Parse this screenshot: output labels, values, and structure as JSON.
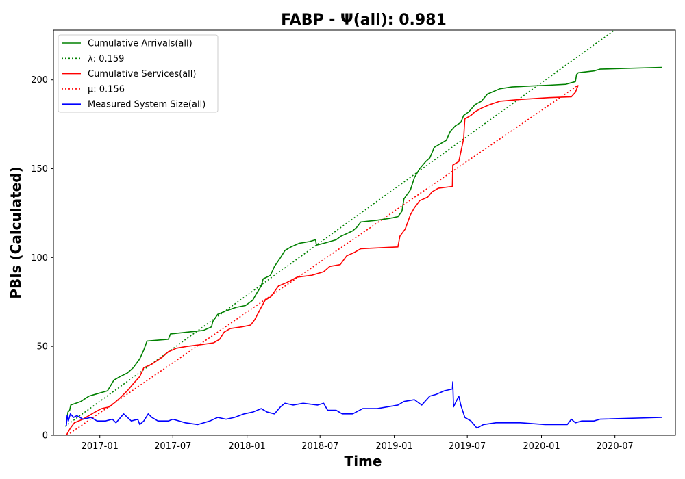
{
  "chart_data": {
    "type": "line",
    "title": "FABP -  Ψ(all): 0.981",
    "xlabel": "Time",
    "ylabel": "PBIs (Calculated)",
    "x_ticks": [
      "2017-01",
      "2017-07",
      "2018-01",
      "2018-07",
      "2019-01",
      "2019-07",
      "2020-01",
      "2020-07"
    ],
    "xlim": [
      "2016-09-08",
      "2020-11-28"
    ],
    "ylim": [
      0,
      228
    ],
    "y_ticks": [
      0,
      50,
      100,
      150,
      200
    ],
    "grid": false,
    "legend_position": "top-left",
    "series": [
      {
        "name": "Cumulative Arrivals(all)",
        "color": "#008000",
        "style": "solid",
        "points": [
          [
            "2016-10-12",
            10
          ],
          [
            "2016-10-14",
            13
          ],
          [
            "2016-10-18",
            14
          ],
          [
            "2016-10-21",
            17
          ],
          [
            "2016-11-15",
            19
          ],
          [
            "2016-12-05",
            22
          ],
          [
            "2016-12-20",
            23
          ],
          [
            "2017-01-20",
            25
          ],
          [
            "2017-01-28",
            28
          ],
          [
            "2017-02-05",
            31
          ],
          [
            "2017-02-20",
            33
          ],
          [
            "2017-03-10",
            35
          ],
          [
            "2017-03-25",
            38
          ],
          [
            "2017-04-10",
            43
          ],
          [
            "2017-04-20",
            48
          ],
          [
            "2017-04-28",
            53
          ],
          [
            "2017-06-20",
            54
          ],
          [
            "2017-06-25",
            57
          ],
          [
            "2017-08-05",
            58
          ],
          [
            "2017-09-15",
            59
          ],
          [
            "2017-10-05",
            61
          ],
          [
            "2017-10-08",
            64
          ],
          [
            "2017-10-20",
            68
          ],
          [
            "2017-11-10",
            70
          ],
          [
            "2017-12-05",
            72
          ],
          [
            "2017-12-28",
            73
          ],
          [
            "2018-01-15",
            76
          ],
          [
            "2018-01-25",
            80
          ],
          [
            "2018-02-05",
            84
          ],
          [
            "2018-02-10",
            88
          ],
          [
            "2018-02-28",
            90
          ],
          [
            "2018-03-10",
            95
          ],
          [
            "2018-03-25",
            100
          ],
          [
            "2018-04-05",
            104
          ],
          [
            "2018-04-20",
            106
          ],
          [
            "2018-05-10",
            108
          ],
          [
            "2018-06-05",
            109
          ],
          [
            "2018-06-20",
            110
          ],
          [
            "2018-06-22",
            107
          ],
          [
            "2018-07-10",
            108
          ],
          [
            "2018-08-10",
            110
          ],
          [
            "2018-08-22",
            112
          ],
          [
            "2018-09-20",
            115
          ],
          [
            "2018-09-30",
            117
          ],
          [
            "2018-10-10",
            120
          ],
          [
            "2018-11-20",
            121
          ],
          [
            "2018-12-20",
            122
          ],
          [
            "2019-01-10",
            123
          ],
          [
            "2019-01-20",
            126
          ],
          [
            "2019-01-25",
            133
          ],
          [
            "2019-02-10",
            138
          ],
          [
            "2019-02-20",
            145
          ],
          [
            "2019-03-05",
            150
          ],
          [
            "2019-03-20",
            154
          ],
          [
            "2019-03-30",
            156
          ],
          [
            "2019-04-10",
            162
          ],
          [
            "2019-04-25",
            164
          ],
          [
            "2019-05-10",
            166
          ],
          [
            "2019-05-20",
            171
          ],
          [
            "2019-06-01",
            174
          ],
          [
            "2019-06-15",
            176
          ],
          [
            "2019-06-22",
            180
          ],
          [
            "2019-07-05",
            182
          ],
          [
            "2019-07-20",
            186
          ],
          [
            "2019-08-05",
            188
          ],
          [
            "2019-08-20",
            192
          ],
          [
            "2019-09-20",
            195
          ],
          [
            "2019-10-20",
            196
          ],
          [
            "2019-12-01",
            196.5
          ],
          [
            "2020-01-20",
            197
          ],
          [
            "2020-03-01",
            197.5
          ],
          [
            "2020-03-25",
            199
          ],
          [
            "2020-03-28",
            203
          ],
          [
            "2020-04-01",
            204
          ],
          [
            "2020-05-10",
            205
          ],
          [
            "2020-05-25",
            206
          ],
          [
            "2020-10-25",
            207
          ]
        ]
      },
      {
        "name": "λ: 0.159",
        "color": "#008000",
        "style": "dotted",
        "points": [
          [
            "2016-10-07",
            5
          ],
          [
            "2020-06-30",
            228
          ]
        ]
      },
      {
        "name": "Cumulative Services(all)",
        "color": "#ff0000",
        "style": "solid",
        "points": [
          [
            "2016-10-10",
            0
          ],
          [
            "2016-10-20",
            4
          ],
          [
            "2016-10-30",
            7
          ],
          [
            "2016-11-20",
            9
          ],
          [
            "2016-12-05",
            11
          ],
          [
            "2016-12-20",
            13
          ],
          [
            "2017-01-05",
            15
          ],
          [
            "2017-01-25",
            16
          ],
          [
            "2017-02-05",
            18
          ],
          [
            "2017-02-20",
            21
          ],
          [
            "2017-03-10",
            25
          ],
          [
            "2017-03-25",
            29
          ],
          [
            "2017-04-10",
            33
          ],
          [
            "2017-04-20",
            38
          ],
          [
            "2017-05-10",
            40
          ],
          [
            "2017-06-05",
            44
          ],
          [
            "2017-06-20",
            47
          ],
          [
            "2017-07-10",
            49
          ],
          [
            "2017-08-05",
            50
          ],
          [
            "2017-09-10",
            51
          ],
          [
            "2017-10-10",
            52
          ],
          [
            "2017-10-25",
            54
          ],
          [
            "2017-11-05",
            58
          ],
          [
            "2017-11-20",
            60
          ],
          [
            "2017-12-20",
            61
          ],
          [
            "2018-01-10",
            62
          ],
          [
            "2018-01-20",
            65
          ],
          [
            "2018-02-05",
            72
          ],
          [
            "2018-02-15",
            76
          ],
          [
            "2018-03-01",
            78
          ],
          [
            "2018-03-20",
            84
          ],
          [
            "2018-04-10",
            86
          ],
          [
            "2018-05-05",
            89
          ],
          [
            "2018-06-10",
            90
          ],
          [
            "2018-07-10",
            92
          ],
          [
            "2018-07-25",
            95
          ],
          [
            "2018-08-20",
            96
          ],
          [
            "2018-09-05",
            101
          ],
          [
            "2018-09-25",
            103
          ],
          [
            "2018-10-10",
            105
          ],
          [
            "2019-01-10",
            106
          ],
          [
            "2019-01-15",
            112
          ],
          [
            "2019-01-28",
            116
          ],
          [
            "2019-02-10",
            124
          ],
          [
            "2019-02-20",
            128
          ],
          [
            "2019-03-05",
            132
          ],
          [
            "2019-03-25",
            134
          ],
          [
            "2019-04-05",
            137
          ],
          [
            "2019-04-20",
            139
          ],
          [
            "2019-05-25",
            140
          ],
          [
            "2019-05-26",
            152
          ],
          [
            "2019-06-10",
            154
          ],
          [
            "2019-06-22",
            167
          ],
          [
            "2019-06-25",
            178
          ],
          [
            "2019-07-10",
            180
          ],
          [
            "2019-07-20",
            182
          ],
          [
            "2019-08-05",
            184
          ],
          [
            "2019-08-25",
            186
          ],
          [
            "2019-09-20",
            188
          ],
          [
            "2019-11-10",
            189
          ],
          [
            "2020-01-20",
            190
          ],
          [
            "2020-03-15",
            190.5
          ],
          [
            "2020-03-25",
            193
          ],
          [
            "2020-04-01",
            197
          ]
        ]
      },
      {
        "name": "μ: 0.156",
        "color": "#ff0000",
        "style": "dotted",
        "points": [
          [
            "2016-10-12",
            0
          ],
          [
            "2020-04-01",
            197
          ]
        ]
      },
      {
        "name": "Measured System Size(all)",
        "color": "#0000ff",
        "style": "solid",
        "points": [
          [
            "2016-10-10",
            5
          ],
          [
            "2016-10-12",
            11
          ],
          [
            "2016-10-15",
            8
          ],
          [
            "2016-10-20",
            12
          ],
          [
            "2016-10-28",
            10
          ],
          [
            "2016-11-05",
            11
          ],
          [
            "2016-11-20",
            9
          ],
          [
            "2016-12-10",
            10
          ],
          [
            "2016-12-25",
            8
          ],
          [
            "2017-01-15",
            8
          ],
          [
            "2017-02-01",
            9
          ],
          [
            "2017-02-10",
            7
          ],
          [
            "2017-03-01",
            12
          ],
          [
            "2017-03-20",
            8
          ],
          [
            "2017-04-05",
            9
          ],
          [
            "2017-04-10",
            6
          ],
          [
            "2017-04-20",
            8
          ],
          [
            "2017-05-01",
            12
          ],
          [
            "2017-05-10",
            10
          ],
          [
            "2017-05-25",
            8
          ],
          [
            "2017-06-20",
            8
          ],
          [
            "2017-07-01",
            9
          ],
          [
            "2017-08-01",
            7
          ],
          [
            "2017-09-01",
            6
          ],
          [
            "2017-10-01",
            8
          ],
          [
            "2017-10-20",
            10
          ],
          [
            "2017-11-10",
            9
          ],
          [
            "2017-12-01",
            10
          ],
          [
            "2017-12-25",
            12
          ],
          [
            "2018-01-15",
            13
          ],
          [
            "2018-02-05",
            15
          ],
          [
            "2018-02-20",
            13
          ],
          [
            "2018-03-10",
            12
          ],
          [
            "2018-03-25",
            16
          ],
          [
            "2018-04-05",
            18
          ],
          [
            "2018-04-25",
            17
          ],
          [
            "2018-05-20",
            18
          ],
          [
            "2018-06-25",
            17
          ],
          [
            "2018-07-10",
            18
          ],
          [
            "2018-07-20",
            14
          ],
          [
            "2018-08-10",
            14
          ],
          [
            "2018-08-25",
            12
          ],
          [
            "2018-09-20",
            12
          ],
          [
            "2018-10-15",
            15
          ],
          [
            "2018-11-20",
            15
          ],
          [
            "2019-01-10",
            17
          ],
          [
            "2019-01-25",
            19
          ],
          [
            "2019-02-20",
            20
          ],
          [
            "2019-03-10",
            17
          ],
          [
            "2019-03-30",
            22
          ],
          [
            "2019-04-15",
            23
          ],
          [
            "2019-05-05",
            25
          ],
          [
            "2019-05-25",
            26
          ],
          [
            "2019-05-26",
            30
          ],
          [
            "2019-05-28",
            16
          ],
          [
            "2019-06-10",
            22
          ],
          [
            "2019-06-15",
            17
          ],
          [
            "2019-06-25",
            10
          ],
          [
            "2019-07-10",
            8
          ],
          [
            "2019-07-25",
            4
          ],
          [
            "2019-08-10",
            6
          ],
          [
            "2019-09-10",
            7
          ],
          [
            "2019-10-20",
            7
          ],
          [
            "2019-11-10",
            7
          ],
          [
            "2020-01-10",
            6
          ],
          [
            "2020-03-05",
            6
          ],
          [
            "2020-03-15",
            9
          ],
          [
            "2020-03-25",
            7
          ],
          [
            "2020-04-10",
            8
          ],
          [
            "2020-05-10",
            8
          ],
          [
            "2020-05-25",
            9
          ],
          [
            "2020-10-25",
            10
          ]
        ]
      }
    ]
  }
}
